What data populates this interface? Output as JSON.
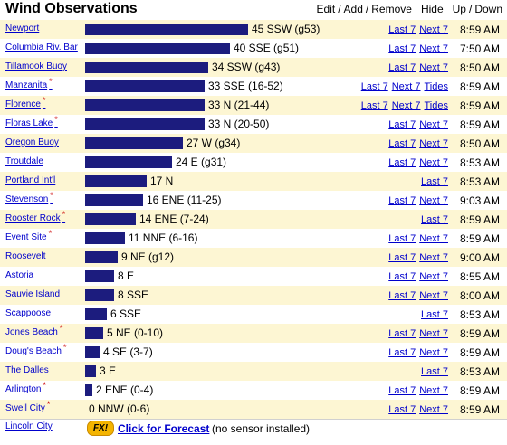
{
  "header": {
    "title": "Wind Observations",
    "edit_label": "Edit",
    "add_label": "Add",
    "remove_label": "Remove",
    "hide_label": "Hide",
    "up_label": "Up",
    "down_label": "Down"
  },
  "labels": {
    "last7": "Last 7",
    "next7": "Next 7",
    "tides": "Tides"
  },
  "bar_scale_max": 45,
  "stations": [
    {
      "name": "Newport",
      "star": false,
      "speed": 45,
      "reading": "45 SSW (g53)",
      "next7": true,
      "tides": false,
      "time": "8:59 AM"
    },
    {
      "name": "Columbia Riv. Bar",
      "star": false,
      "speed": 40,
      "reading": "40 SSE (g51)",
      "next7": true,
      "tides": false,
      "time": "7:50 AM"
    },
    {
      "name": "Tillamook Buoy",
      "star": false,
      "speed": 34,
      "reading": "34 SSW (g43)",
      "next7": true,
      "tides": false,
      "time": "8:50 AM"
    },
    {
      "name": "Manzanita",
      "star": true,
      "speed": 33,
      "reading": "33 SSE (16-52)",
      "next7": true,
      "tides": true,
      "time": "8:59 AM"
    },
    {
      "name": "Florence",
      "star": true,
      "speed": 33,
      "reading": "33 N (21-44)",
      "next7": true,
      "tides": true,
      "time": "8:59 AM"
    },
    {
      "name": "Floras Lake",
      "star": true,
      "speed": 33,
      "reading": "33 N (20-50)",
      "next7": true,
      "tides": false,
      "time": "8:59 AM"
    },
    {
      "name": "Oregon Buoy",
      "star": false,
      "speed": 27,
      "reading": "27 W (g34)",
      "next7": true,
      "tides": false,
      "time": "8:50 AM"
    },
    {
      "name": "Troutdale",
      "star": false,
      "speed": 24,
      "reading": "24 E (g31)",
      "next7": true,
      "tides": false,
      "time": "8:53 AM"
    },
    {
      "name": "Portland Int'l",
      "star": false,
      "speed": 17,
      "reading": "17 N",
      "next7": false,
      "tides": false,
      "time": "8:53 AM"
    },
    {
      "name": "Stevenson",
      "star": true,
      "speed": 16,
      "reading": "16 ENE (11-25)",
      "next7": true,
      "tides": false,
      "time": "9:03 AM"
    },
    {
      "name": "Rooster Rock",
      "star": true,
      "speed": 14,
      "reading": "14 ENE (7-24)",
      "next7": false,
      "tides": false,
      "time": "8:59 AM"
    },
    {
      "name": "Event Site",
      "star": true,
      "speed": 11,
      "reading": "11 NNE (6-16)",
      "next7": true,
      "tides": false,
      "time": "8:59 AM"
    },
    {
      "name": "Roosevelt",
      "star": false,
      "speed": 9,
      "reading": "9 NE (g12)",
      "next7": true,
      "tides": false,
      "time": "9:00 AM"
    },
    {
      "name": "Astoria",
      "star": false,
      "speed": 8,
      "reading": "8 E",
      "next7": true,
      "tides": false,
      "time": "8:55 AM"
    },
    {
      "name": "Sauvie Island",
      "star": false,
      "speed": 8,
      "reading": "8 SSE",
      "next7": true,
      "tides": false,
      "time": "8:00 AM"
    },
    {
      "name": "Scappoose",
      "star": false,
      "speed": 6,
      "reading": "6 SSE",
      "next7": false,
      "tides": false,
      "time": "8:53 AM"
    },
    {
      "name": "Jones Beach",
      "star": true,
      "speed": 5,
      "reading": "5 NE (0-10)",
      "next7": true,
      "tides": false,
      "time": "8:59 AM"
    },
    {
      "name": "Doug's Beach",
      "star": true,
      "speed": 4,
      "reading": "4 SE (3-7)",
      "next7": true,
      "tides": false,
      "time": "8:59 AM"
    },
    {
      "name": "The Dalles",
      "star": false,
      "speed": 3,
      "reading": "3 E",
      "next7": false,
      "tides": false,
      "time": "8:53 AM"
    },
    {
      "name": "Arlington",
      "star": true,
      "speed": 2,
      "reading": "2 ENE (0-4)",
      "next7": true,
      "tides": false,
      "time": "8:59 AM"
    },
    {
      "name": "Swell City",
      "star": true,
      "speed": 0,
      "reading": "0 NNW (0-6)",
      "next7": true,
      "tides": false,
      "time": "8:59 AM"
    }
  ],
  "forecast_row": {
    "name": "Lincoln City",
    "icon_label": "FX!",
    "link_label": "Click for Forecast",
    "note": "(no sensor installed)"
  }
}
